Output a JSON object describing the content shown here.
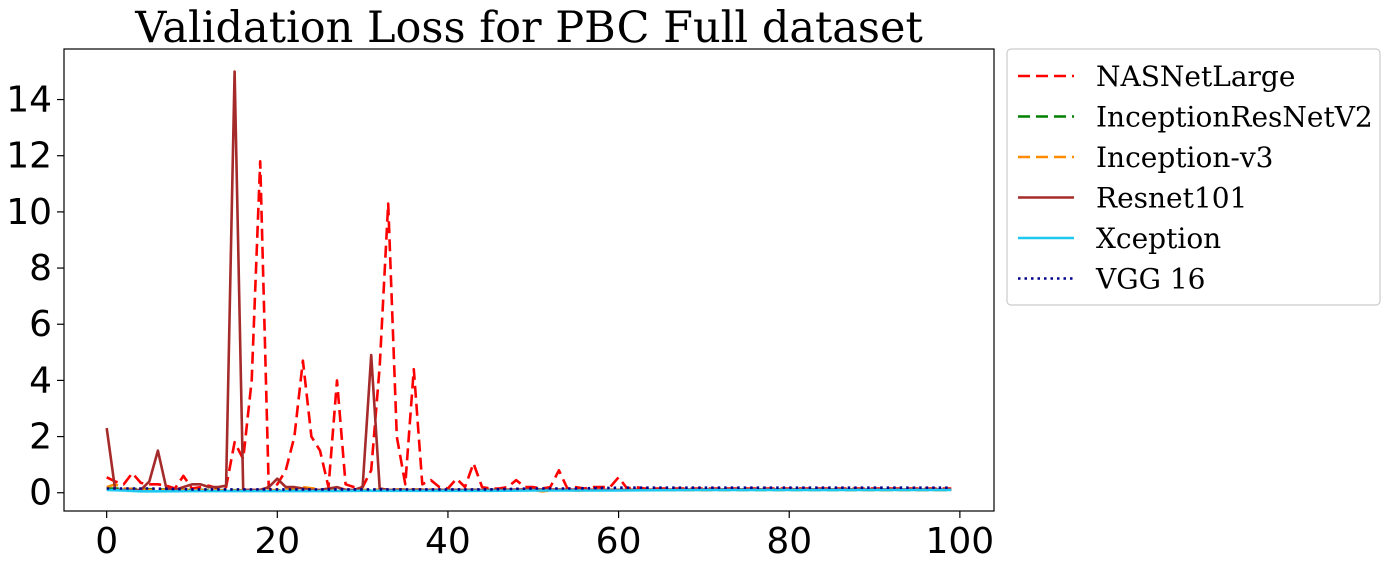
{
  "chart_data": {
    "type": "line",
    "title": "Validation Loss for PBC Full dataset",
    "xlabel": "",
    "ylabel": "",
    "xlim": [
      -5,
      104
    ],
    "ylim": [
      -0.65,
      15.8
    ],
    "xticks": [
      0,
      20,
      40,
      60,
      80,
      100
    ],
    "yticks": [
      0,
      2,
      4,
      6,
      8,
      10,
      12,
      14
    ],
    "grid": false,
    "legend_position": "outside right, top",
    "series": [
      {
        "name": "NASNetLarge",
        "color": "#ff0000",
        "dash": "dashed",
        "x": [
          0,
          1,
          2,
          3,
          4,
          5,
          6,
          7,
          8,
          9,
          10,
          11,
          12,
          13,
          14,
          15,
          16,
          17,
          18,
          19,
          20,
          21,
          22,
          23,
          24,
          25,
          26,
          27,
          28,
          29,
          30,
          31,
          32,
          33,
          34,
          35,
          36,
          37,
          38,
          39,
          40,
          41,
          42,
          43,
          44,
          45,
          46,
          47,
          48,
          49,
          50,
          51,
          52,
          53,
          54,
          55,
          56,
          57,
          58,
          59,
          60,
          61,
          62,
          63,
          64,
          65,
          66,
          67,
          68,
          69,
          70,
          71,
          72,
          73,
          74,
          75,
          76,
          77,
          78,
          79,
          80,
          81,
          82,
          83,
          84,
          85,
          86,
          87,
          88,
          89,
          90,
          91,
          92,
          93,
          94,
          95,
          96,
          97,
          98,
          99
        ],
        "y": [
          0.55,
          0.4,
          0.3,
          0.7,
          0.35,
          0.3,
          0.3,
          0.25,
          0.15,
          0.6,
          0.15,
          0.2,
          0.25,
          0.15,
          0.2,
          1.8,
          1.2,
          4.0,
          11.8,
          0.1,
          0.3,
          0.8,
          2.0,
          4.7,
          2.0,
          1.5,
          0.2,
          4.0,
          0.3,
          0.2,
          0.2,
          0.8,
          4.5,
          10.3,
          2.0,
          0.3,
          4.4,
          0.3,
          0.45,
          0.2,
          0.15,
          0.5,
          0.2,
          1.05,
          0.2,
          0.15,
          0.15,
          0.2,
          0.45,
          0.2,
          0.2,
          0.15,
          0.2,
          0.8,
          0.15,
          0.2,
          0.15,
          0.2,
          0.2,
          0.2,
          0.55,
          0.15,
          0.2,
          0.15,
          0.15,
          0.15,
          0.15,
          0.15,
          0.15,
          0.15,
          0.15,
          0.15,
          0.15,
          0.15,
          0.15,
          0.15,
          0.15,
          0.15,
          0.15,
          0.15,
          0.15,
          0.15,
          0.15,
          0.15,
          0.15,
          0.15,
          0.15,
          0.15,
          0.15,
          0.15,
          0.15,
          0.15,
          0.15,
          0.15,
          0.15,
          0.15,
          0.15,
          0.15,
          0.15,
          0.15
        ]
      },
      {
        "name": "InceptionResNetV2",
        "color": "#008000",
        "dash": "dashed",
        "x": [
          0,
          10,
          20,
          30,
          40,
          50,
          60,
          70,
          80,
          90,
          99
        ],
        "y": [
          0.15,
          0.1,
          0.08,
          0.08,
          0.1,
          0.1,
          0.1,
          0.1,
          0.1,
          0.1,
          0.1
        ]
      },
      {
        "name": "Inception-v3",
        "color": "#ff8c00",
        "dash": "dashed",
        "x": [
          0,
          1,
          2,
          5,
          10,
          15,
          20,
          23,
          25,
          30,
          35,
          40,
          45,
          50,
          51,
          53,
          55,
          60,
          70,
          80,
          90,
          99
        ],
        "y": [
          0.2,
          0.3,
          0.15,
          0.1,
          0.1,
          0.08,
          0.1,
          0.2,
          0.12,
          0.1,
          0.12,
          0.1,
          0.08,
          0.1,
          0.05,
          0.1,
          0.08,
          0.1,
          0.1,
          0.12,
          0.1,
          0.1
        ]
      },
      {
        "name": "Resnet101",
        "color": "#a52a2a",
        "dash": "solid",
        "x": [
          0,
          1,
          2,
          3,
          4,
          5,
          6,
          7,
          8,
          9,
          10,
          11,
          12,
          13,
          14,
          15,
          16,
          17,
          18,
          19,
          20,
          21,
          22,
          23,
          24,
          25,
          26,
          27,
          28,
          29,
          30,
          31,
          32,
          33,
          34,
          35,
          36,
          40,
          45,
          50,
          60,
          70,
          80,
          90,
          99
        ],
        "y": [
          2.3,
          0.1,
          0.1,
          0.1,
          0.1,
          0.4,
          1.5,
          0.15,
          0.1,
          0.2,
          0.3,
          0.3,
          0.2,
          0.2,
          0.25,
          15.0,
          0.1,
          0.1,
          0.1,
          0.2,
          0.5,
          0.2,
          0.2,
          0.15,
          0.1,
          0.1,
          0.15,
          0.2,
          0.1,
          0.1,
          0.2,
          4.9,
          0.15,
          0.1,
          0.1,
          0.1,
          0.1,
          0.1,
          0.1,
          0.12,
          0.1,
          0.12,
          0.12,
          0.12,
          0.12
        ]
      },
      {
        "name": "Xception",
        "color": "#1ec8f0",
        "dash": "solid",
        "x": [
          0,
          2,
          4,
          6,
          10,
          15,
          20,
          25,
          30,
          35,
          40,
          45,
          50,
          55,
          60,
          70,
          80,
          90,
          99
        ],
        "y": [
          0.1,
          0.08,
          0.05,
          0.05,
          0.06,
          0.06,
          0.06,
          0.06,
          0.07,
          0.07,
          0.07,
          0.07,
          0.08,
          0.08,
          0.08,
          0.1,
          0.1,
          0.1,
          0.1
        ]
      },
      {
        "name": "VGG 16",
        "color": "#00008b",
        "dash": "dotted",
        "x": [
          0,
          5,
          10,
          15,
          20,
          25,
          30,
          35,
          40,
          45,
          50,
          55,
          60,
          65,
          70,
          75,
          80,
          85,
          90,
          95,
          99
        ],
        "y": [
          0.15,
          0.15,
          0.12,
          0.12,
          0.12,
          0.12,
          0.12,
          0.12,
          0.12,
          0.12,
          0.15,
          0.15,
          0.18,
          0.18,
          0.18,
          0.18,
          0.18,
          0.18,
          0.18,
          0.18,
          0.18
        ]
      }
    ]
  }
}
